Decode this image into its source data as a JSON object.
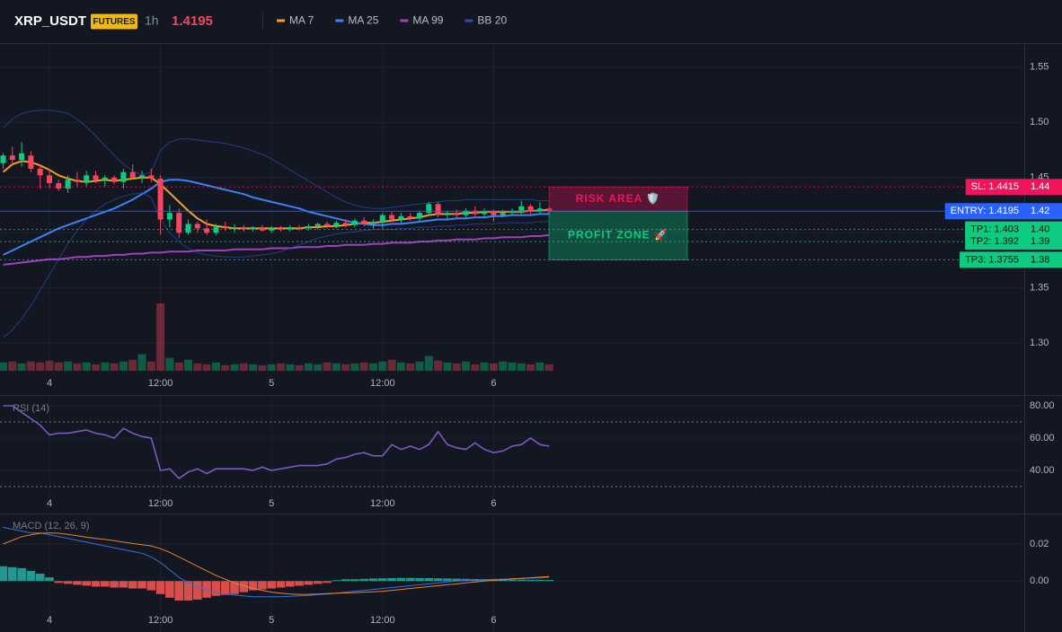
{
  "chart_data": [
    {
      "type": "candlestick",
      "title": "XRP_USDT",
      "badge": "FUTURES",
      "interval": "1h",
      "last_price": 1.4195,
      "categories": [
        null,
        null,
        null,
        null,
        null,
        "4",
        null,
        null,
        null,
        null,
        null,
        null,
        null,
        null,
        null,
        null,
        null,
        "12:00",
        null,
        null,
        null,
        null,
        null,
        null,
        null,
        null,
        null,
        null,
        null,
        "5",
        null,
        null,
        null,
        null,
        null,
        null,
        null,
        null,
        null,
        null,
        null,
        "12:00",
        null,
        null,
        null,
        null,
        null,
        null,
        null,
        null,
        null,
        null,
        null,
        "6",
        null,
        null,
        null,
        null,
        null,
        null
      ],
      "open": [
        1.463,
        1.47,
        1.466,
        1.47,
        1.458,
        1.452,
        1.445,
        1.44,
        1.448,
        1.446,
        1.452,
        1.448,
        1.45,
        1.446,
        1.455,
        1.45,
        1.452,
        1.449,
        1.412,
        1.418,
        1.4,
        1.408,
        1.404,
        1.4,
        1.405,
        1.404,
        1.405,
        1.403,
        1.405,
        1.402,
        1.404,
        1.403,
        1.405,
        1.404,
        1.406,
        1.408,
        1.406,
        1.409,
        1.407,
        1.411,
        1.408,
        1.41,
        1.416,
        1.412,
        1.415,
        1.413,
        1.418,
        1.426,
        1.416,
        1.418,
        1.416,
        1.42,
        1.417,
        1.419,
        1.416,
        1.418,
        1.42,
        1.424,
        1.419,
        1.422
      ],
      "high": [
        1.472,
        1.478,
        1.482,
        1.474,
        1.462,
        1.458,
        1.448,
        1.452,
        1.455,
        1.456,
        1.456,
        1.452,
        1.452,
        1.458,
        1.462,
        1.456,
        1.458,
        1.452,
        1.425,
        1.422,
        1.412,
        1.41,
        1.412,
        1.408,
        1.41,
        1.408,
        1.407,
        1.406,
        1.407,
        1.406,
        1.406,
        1.407,
        1.407,
        1.408,
        1.409,
        1.41,
        1.411,
        1.412,
        1.413,
        1.414,
        1.412,
        1.418,
        1.419,
        1.418,
        1.418,
        1.42,
        1.428,
        1.428,
        1.42,
        1.421,
        1.422,
        1.424,
        1.422,
        1.421,
        1.421,
        1.422,
        1.429,
        1.426,
        1.428,
        1.424
      ],
      "low": [
        1.458,
        1.462,
        1.46,
        1.455,
        1.44,
        1.44,
        1.438,
        1.436,
        1.442,
        1.442,
        1.445,
        1.442,
        1.444,
        1.44,
        1.448,
        1.445,
        1.446,
        1.398,
        1.405,
        1.395,
        1.398,
        1.4,
        1.398,
        1.398,
        1.402,
        1.4,
        1.401,
        1.401,
        1.401,
        1.4,
        1.401,
        1.401,
        1.402,
        1.402,
        1.403,
        1.404,
        1.404,
        1.405,
        1.405,
        1.406,
        1.404,
        1.404,
        1.41,
        1.409,
        1.411,
        1.411,
        1.415,
        1.414,
        1.412,
        1.414,
        1.414,
        1.415,
        1.415,
        1.41,
        1.414,
        1.416,
        1.417,
        1.417,
        1.417,
        1.417
      ],
      "close": [
        1.47,
        1.466,
        1.472,
        1.458,
        1.452,
        1.445,
        1.44,
        1.448,
        1.446,
        1.452,
        1.448,
        1.45,
        1.446,
        1.455,
        1.45,
        1.452,
        1.449,
        1.412,
        1.418,
        1.4,
        1.408,
        1.404,
        1.4,
        1.405,
        1.404,
        1.405,
        1.403,
        1.405,
        1.402,
        1.404,
        1.403,
        1.405,
        1.404,
        1.406,
        1.408,
        1.406,
        1.409,
        1.407,
        1.411,
        1.408,
        1.41,
        1.416,
        1.412,
        1.415,
        1.413,
        1.418,
        1.426,
        1.416,
        1.418,
        1.416,
        1.42,
        1.417,
        1.419,
        1.416,
        1.418,
        1.42,
        1.424,
        1.419,
        1.422,
        1.4195
      ],
      "up_color": "#0ecb81",
      "down_color": "#f6465d",
      "volume": [
        9,
        10,
        8,
        10,
        9,
        11,
        9,
        10,
        8,
        9,
        7,
        9,
        8,
        10,
        12,
        18,
        10,
        73,
        14,
        9,
        12,
        8,
        7,
        9,
        6,
        7,
        8,
        7,
        6,
        7,
        8,
        7,
        6,
        8,
        7,
        9,
        8,
        7,
        8,
        9,
        8,
        10,
        12,
        9,
        8,
        10,
        16,
        11,
        9,
        8,
        10,
        7,
        9,
        8,
        10,
        9,
        8,
        7,
        9,
        7
      ],
      "series": [
        {
          "name": "MA 7",
          "color": "#f0a020",
          "values": [
            1.455,
            1.462,
            1.465,
            1.464,
            1.461,
            1.457,
            1.452,
            1.449,
            1.447,
            1.446,
            1.447,
            1.448,
            1.447,
            1.448,
            1.449,
            1.45,
            1.45,
            1.444,
            1.436,
            1.428,
            1.42,
            1.413,
            1.408,
            1.406,
            1.405,
            1.404,
            1.404,
            1.404,
            1.404,
            1.404,
            1.404,
            1.404,
            1.404,
            1.405,
            1.405,
            1.406,
            1.406,
            1.407,
            1.408,
            1.409,
            1.409,
            1.41,
            1.411,
            1.412,
            1.413,
            1.414,
            1.416,
            1.417,
            1.417,
            1.417,
            1.418,
            1.418,
            1.419,
            1.419,
            1.419,
            1.419,
            1.419,
            1.42,
            1.42,
            1.421
          ]
        },
        {
          "name": "MA 25",
          "color": "#3b82f6",
          "values": [
            1.38,
            1.384,
            1.388,
            1.392,
            1.396,
            1.4,
            1.404,
            1.407,
            1.41,
            1.413,
            1.416,
            1.419,
            1.422,
            1.426,
            1.43,
            1.435,
            1.44,
            1.446,
            1.448,
            1.448,
            1.447,
            1.445,
            1.443,
            1.441,
            1.439,
            1.437,
            1.435,
            1.432,
            1.43,
            1.428,
            1.426,
            1.424,
            1.422,
            1.419,
            1.417,
            1.415,
            1.413,
            1.411,
            1.409,
            1.408,
            1.407,
            1.407,
            1.408,
            1.408,
            1.409,
            1.41,
            1.411,
            1.412,
            1.412,
            1.413,
            1.413,
            1.414,
            1.414,
            1.415,
            1.415,
            1.416,
            1.416,
            1.416,
            1.417,
            1.417
          ]
        },
        {
          "name": "MA 99",
          "color": "#a040c0",
          "values": [
            1.371,
            1.372,
            1.373,
            1.374,
            1.375,
            1.376,
            1.376,
            1.377,
            1.378,
            1.378,
            1.379,
            1.379,
            1.38,
            1.38,
            1.381,
            1.381,
            1.382,
            1.382,
            1.383,
            1.383,
            1.383,
            1.384,
            1.384,
            1.384,
            1.384,
            1.385,
            1.385,
            1.385,
            1.385,
            1.386,
            1.386,
            1.386,
            1.387,
            1.387,
            1.387,
            1.388,
            1.388,
            1.389,
            1.389,
            1.389,
            1.39,
            1.39,
            1.391,
            1.391,
            1.391,
            1.392,
            1.392,
            1.393,
            1.393,
            1.394,
            1.394,
            1.394,
            1.395,
            1.395,
            1.396,
            1.396,
            1.396,
            1.397,
            1.397,
            1.398
          ]
        },
        {
          "name": "BB 20",
          "color": "#2b4fa8",
          "upper": [
            1.495,
            1.503,
            1.508,
            1.51,
            1.511,
            1.511,
            1.51,
            1.508,
            1.503,
            1.496,
            1.488,
            1.479,
            1.47,
            1.462,
            1.456,
            1.452,
            1.455,
            1.475,
            1.482,
            1.485,
            1.485,
            1.484,
            1.483,
            1.482,
            1.481,
            1.479,
            1.477,
            1.474,
            1.471,
            1.467,
            1.462,
            1.457,
            1.452,
            1.447,
            1.442,
            1.437,
            1.432,
            1.428,
            1.425,
            1.423,
            1.422,
            1.422,
            1.423,
            1.424,
            1.425,
            1.426,
            1.427,
            1.428,
            1.429,
            1.429,
            1.43,
            1.43,
            1.43,
            1.43,
            1.43,
            1.43,
            1.43,
            1.43,
            1.429,
            1.429
          ],
          "lower": [
            1.305,
            1.312,
            1.322,
            1.334,
            1.348,
            1.362,
            1.376,
            1.39,
            1.402,
            1.412,
            1.42,
            1.426,
            1.43,
            1.433,
            1.435,
            1.436,
            1.432,
            1.412,
            1.4,
            1.392,
            1.386,
            1.382,
            1.38,
            1.379,
            1.378,
            1.378,
            1.378,
            1.379,
            1.38,
            1.381,
            1.383,
            1.386,
            1.389,
            1.392,
            1.395,
            1.397,
            1.399,
            1.4,
            1.401,
            1.402,
            1.403,
            1.403,
            1.403,
            1.404,
            1.404,
            1.405,
            1.405,
            1.406,
            1.406,
            1.407,
            1.407,
            1.408,
            1.408,
            1.408,
            1.409,
            1.409,
            1.409,
            1.409,
            1.41,
            1.41
          ]
        }
      ],
      "ylim": [
        1.275,
        1.571
      ],
      "yticks": [
        1.55,
        {
          "value": 1.5,
          "label": "1.50"
        },
        1.45,
        {
          "value": 1.4,
          "label": "1.40"
        },
        1.35,
        {
          "value": 1.3,
          "label": "1.30"
        }
      ],
      "levels": [
        {
          "label": "SL: 1.4415",
          "price": 1.4415,
          "axis_label": "1.44",
          "color": "#f0145a",
          "style": "dotted"
        },
        {
          "label": "ENTRY: 1.4195",
          "price": 1.4195,
          "axis_label": "1.42",
          "color": "#2962ff",
          "style": "solid"
        },
        {
          "label": "TP1: 1.403",
          "price": 1.403,
          "axis_label": "1.40",
          "color": "#0ecb81",
          "style": "dotted"
        },
        {
          "label": "TP2: 1.392",
          "price": 1.392,
          "axis_label": "1.39",
          "color": "#0ecb81",
          "style": "dotted"
        },
        {
          "label": "TP3: 1.3755",
          "price": 1.3755,
          "axis_label": "1.38",
          "color": "#0ecb81",
          "style": "dotted"
        }
      ],
      "zones": [
        {
          "label": "RISK AREA 🛡️",
          "color": "#f0145a"
        },
        {
          "label": "PROFIT ZONE 🚀",
          "color": "#0ecb81"
        }
      ]
    },
    {
      "type": "line",
      "title": "RSI (14)",
      "color": "#7e57c2",
      "values": [
        80,
        80,
        76,
        72,
        68,
        62,
        63,
        63,
        64,
        65,
        63,
        62,
        60,
        66,
        63,
        61,
        60,
        40,
        41,
        35,
        39,
        41,
        38,
        41,
        41,
        41,
        41,
        40,
        42,
        40,
        41,
        42,
        43,
        43,
        43,
        44,
        47,
        48,
        50,
        51,
        49,
        49,
        56,
        53,
        55,
        53,
        56,
        64,
        56,
        54,
        53,
        57,
        53,
        51,
        52,
        55,
        56,
        60,
        56,
        55
      ],
      "ylim": [
        18.3,
        86.1
      ],
      "yticks": [
        {
          "value": 80,
          "label": "80.00"
        },
        {
          "value": 60,
          "label": "60.00"
        },
        {
          "value": 40,
          "label": "40.00"
        }
      ],
      "levels": [
        70,
        30
      ]
    },
    {
      "type": "macd",
      "title": "MACD (12, 26, 9)",
      "up_color": "#26a69a",
      "down_color": "#ef5350",
      "histogram": [
        0.008,
        0.0075,
        0.007,
        0.0055,
        0.004,
        0.002,
        -0.001,
        -0.0015,
        -0.002,
        -0.0025,
        -0.003,
        -0.003,
        -0.0035,
        -0.0035,
        -0.004,
        -0.004,
        -0.005,
        -0.007,
        -0.009,
        -0.0105,
        -0.0105,
        -0.01,
        -0.009,
        -0.008,
        -0.0075,
        -0.007,
        -0.006,
        -0.005,
        -0.0045,
        -0.004,
        -0.0035,
        -0.003,
        -0.0025,
        -0.002,
        -0.0015,
        -0.001,
        0.0005,
        0.001,
        0.001,
        0.0012,
        0.0014,
        0.0015,
        0.0016,
        0.0017,
        0.0017,
        0.0016,
        0.0016,
        0.0015,
        0.0014,
        0.0013,
        0.0012,
        0.0011,
        0.001,
        0.0009,
        0.0009,
        0.0008,
        0.0008,
        0.0007,
        0.0007,
        0.0006
      ],
      "series": [
        {
          "color": "#3b6fd8",
          "values": [
            0.029,
            0.028,
            0.027,
            0.026,
            0.026,
            0.025,
            0.024,
            0.023,
            0.022,
            0.021,
            0.02,
            0.019,
            0.018,
            0.017,
            0.016,
            0.015,
            0.013,
            0.01,
            0.006,
            0.002,
            -0.001,
            -0.003,
            -0.005,
            -0.006,
            -0.007,
            -0.0075,
            -0.008,
            -0.0085,
            -0.0085,
            -0.0085,
            -0.0085,
            -0.0082,
            -0.008,
            -0.0077,
            -0.0073,
            -0.007,
            -0.0065,
            -0.006,
            -0.0055,
            -0.005,
            -0.0045,
            -0.004,
            -0.0035,
            -0.003,
            -0.0025,
            -0.002,
            -0.0015,
            -0.001,
            -0.0005,
            0,
            0.0003,
            0.0005,
            0.0007,
            0.0009,
            0.001,
            0.0012,
            0.0014,
            0.0016,
            0.0018,
            0.002
          ]
        },
        {
          "color": "#e8832a",
          "values": [
            0.02,
            0.022,
            0.024,
            0.025,
            0.0258,
            0.026,
            0.0258,
            0.0252,
            0.0245,
            0.0237,
            0.023,
            0.0225,
            0.0218,
            0.021,
            0.0203,
            0.0196,
            0.019,
            0.0175,
            0.0155,
            0.013,
            0.0105,
            0.008,
            0.0055,
            0.003,
            0.001,
            -0.001,
            -0.0025,
            -0.004,
            -0.005,
            -0.006,
            -0.0065,
            -0.007,
            -0.0072,
            -0.0072,
            -0.007,
            -0.0068,
            -0.0066,
            -0.0064,
            -0.0062,
            -0.006,
            -0.0058,
            -0.0055,
            -0.005,
            -0.0045,
            -0.004,
            -0.0035,
            -0.003,
            -0.0025,
            -0.002,
            -0.0015,
            -0.001,
            -0.0005,
            0,
            0.0004,
            0.0008,
            0.0012,
            0.0015,
            0.0018,
            0.0021,
            0.0024
          ]
        }
      ],
      "ylim": [
        -0.0275,
        0.036
      ],
      "yticks": [
        0.02,
        {
          "value": 0,
          "label": "0.00"
        }
      ]
    }
  ]
}
